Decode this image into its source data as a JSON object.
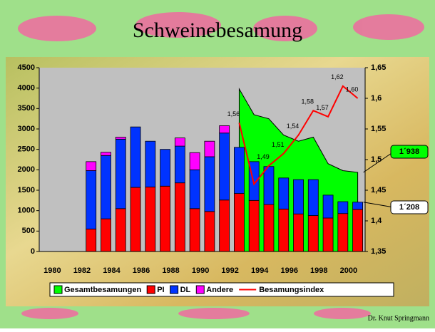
{
  "chart_data": {
    "type": "bar",
    "title": "Schweinebesamung",
    "footer": "Dr. Knut Springmann",
    "categories": [
      "1980",
      null,
      "1982",
      null,
      "1984",
      null,
      "1986",
      null,
      "1988",
      null,
      "1990",
      null,
      "1992",
      null,
      "1994",
      null,
      "1996",
      null,
      "1998",
      null,
      "2000",
      null
    ],
    "series": [
      {
        "name": "Gesamtbesamungen",
        "color": "#00ff00",
        "kind": "area",
        "values": [
          null,
          null,
          null,
          null,
          null,
          null,
          null,
          null,
          null,
          null,
          null,
          null,
          null,
          3980,
          3350,
          3250,
          2850,
          2700,
          2800,
          2150,
          1980,
          1938
        ]
      },
      {
        "name": "PI",
        "color": "#ff0000",
        "kind": "stack",
        "values": [
          null,
          null,
          null,
          550,
          800,
          1050,
          1570,
          1580,
          1600,
          1680,
          1050,
          980,
          1260,
          1420,
          1250,
          1150,
          1040,
          920,
          880,
          820,
          930,
          1030
        ]
      },
      {
        "name": "DL",
        "color": "#0033ff",
        "kind": "stack",
        "values": [
          null,
          null,
          null,
          1430,
          1550,
          1700,
          1480,
          1120,
          900,
          900,
          950,
          1340,
          1640,
          1130,
          950,
          930,
          760,
          840,
          880,
          560,
          290,
          178
        ]
      },
      {
        "name": "Andere",
        "color": "#ff00ff",
        "kind": "stack",
        "values": [
          null,
          null,
          null,
          220,
          80,
          50,
          0,
          0,
          0,
          200,
          420,
          380,
          180,
          0,
          0,
          0,
          0,
          0,
          0,
          0,
          0,
          0
        ]
      },
      {
        "name": "Besamungsindex",
        "color": "#ff0000",
        "kind": "line",
        "axis": "y2",
        "values": [
          null,
          null,
          null,
          null,
          null,
          null,
          null,
          null,
          null,
          null,
          null,
          null,
          null,
          1.56,
          1.46,
          1.49,
          1.51,
          1.54,
          1.58,
          1.57,
          1.62,
          1.6
        ],
        "value_labels": [
          null,
          null,
          null,
          null,
          null,
          null,
          null,
          null,
          null,
          null,
          null,
          null,
          null,
          "1,56",
          null,
          "1,49",
          "1,51",
          "1,54",
          "1,58",
          "1,57",
          "1,62",
          "1,60"
        ]
      }
    ],
    "ylim": [
      0,
      4500
    ],
    "yticks": [
      0,
      500,
      1000,
      1500,
      2000,
      2500,
      3000,
      3500,
      4000,
      4500
    ],
    "y2lim": [
      1.35,
      1.65
    ],
    "y2ticks": [
      {
        "value": 1.35,
        "label": "1,35"
      },
      {
        "value": 1.4,
        "label": "1,4"
      },
      {
        "value": 1.45,
        "label": "1,45"
      },
      {
        "value": 1.5,
        "label": "1,5"
      },
      {
        "value": 1.55,
        "label": "1,55"
      },
      {
        "value": 1.6,
        "label": "1,6"
      },
      {
        "value": 1.65,
        "label": "1,65"
      }
    ],
    "annotations": [
      {
        "text": "1´938",
        "color": "#00ff00",
        "series": 0,
        "index": 21
      },
      {
        "text": "1´208",
        "color": "#ffffff",
        "series": 2,
        "index": 21
      }
    ]
  }
}
